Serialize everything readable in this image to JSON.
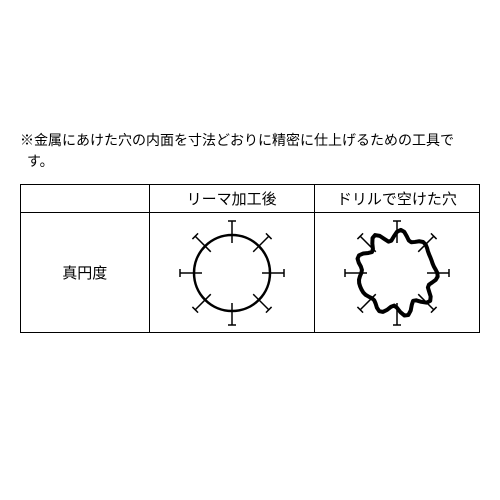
{
  "note_text": "※金属にあけた穴の内面を寸法どおりに精密に仕上げるための工具です。",
  "table": {
    "header_left": "",
    "header_mid": "リーマ加工後",
    "header_right": "ドリルで空けた穴",
    "row_label": "真円度"
  },
  "diagram": {
    "type": "comparison-figure",
    "background_color": "#ffffff",
    "stroke_color": "#000000",
    "circle_radius": 38,
    "tick_inner": 30,
    "tick_outer": 52,
    "tick_count": 8,
    "reamed": {
      "shape": "perfect-circle",
      "line_width": 2.5
    },
    "drilled": {
      "shape": "irregular-lobed",
      "line_width": 4,
      "lobe_count": 9,
      "radial_variation": 6
    }
  }
}
